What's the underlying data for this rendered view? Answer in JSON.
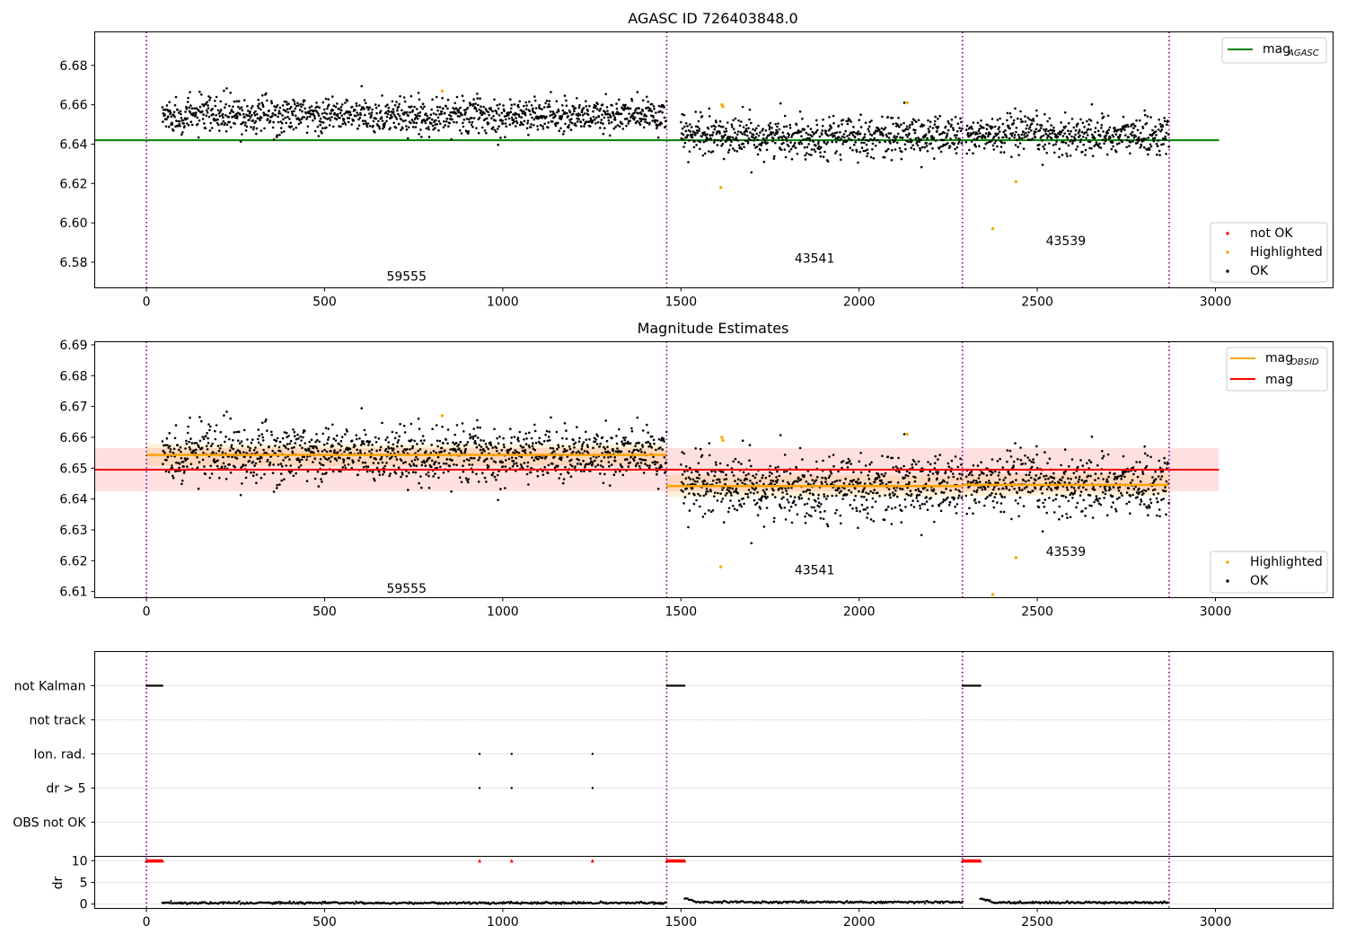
{
  "chart_data": [
    {
      "type": "scatter",
      "title": "AGASC ID 726403848.0",
      "xlim": [
        -145,
        3330
      ],
      "ylim": [
        6.567,
        6.697
      ],
      "x_ticks": [
        0,
        500,
        1000,
        1500,
        2000,
        2500,
        3000
      ],
      "y_ticks": [
        6.58,
        6.6,
        6.62,
        6.64,
        6.66,
        6.68
      ],
      "obs_boundaries": [
        0,
        1460,
        2290,
        2870
      ],
      "obsid_labels": [
        {
          "x": 730,
          "y": 6.573,
          "text": "59555"
        },
        {
          "x": 1875,
          "y": 6.582,
          "text": "43541"
        },
        {
          "x": 2580,
          "y": 6.591,
          "text": "43539"
        }
      ],
      "mag_agasc": 6.642,
      "mag_agasc_x": [
        -145,
        3010
      ],
      "segments": [
        {
          "x0": 45,
          "x1": 1460,
          "mean": 6.6545,
          "spread": 0.0045
        },
        {
          "x0": 1500,
          "x1": 2290,
          "mean": 6.644,
          "spread": 0.005
        },
        {
          "x0": 2300,
          "x1": 2870,
          "mean": 6.6445,
          "spread": 0.005
        }
      ],
      "highlighted_points": [
        {
          "x": 830,
          "y": 6.667
        },
        {
          "x": 1612,
          "y": 6.618
        },
        {
          "x": 1615,
          "y": 6.66
        },
        {
          "x": 1618,
          "y": 6.659
        },
        {
          "x": 2135,
          "y": 6.661
        },
        {
          "x": 2375,
          "y": 6.597
        },
        {
          "x": 2440,
          "y": 6.621
        }
      ],
      "legend": {
        "position": "top-right",
        "entries": [
          {
            "label": "mag",
            "sub": "AGASC",
            "color": "#008000"
          }
        ]
      },
      "legend2": {
        "position": "bottom-right",
        "entries": [
          {
            "label": "not OK",
            "color": "#ff0000"
          },
          {
            "label": "Highlighted",
            "color": "#ffa500"
          },
          {
            "label": "OK",
            "color": "#000000"
          }
        ]
      }
    },
    {
      "type": "scatter",
      "title": "Magnitude Estimates",
      "xlim": [
        -145,
        3330
      ],
      "ylim": [
        6.608,
        6.691
      ],
      "x_ticks": [
        0,
        500,
        1000,
        1500,
        2000,
        2500,
        3000
      ],
      "y_ticks": [
        6.61,
        6.62,
        6.63,
        6.64,
        6.65,
        6.66,
        6.67,
        6.68,
        6.69
      ],
      "obs_boundaries": [
        0,
        1460,
        2290,
        2870
      ],
      "obsid_labels": [
        {
          "x": 730,
          "y": 6.611,
          "text": "59555"
        },
        {
          "x": 1875,
          "y": 6.617,
          "text": "43541"
        },
        {
          "x": 2580,
          "y": 6.623,
          "text": "43539"
        }
      ],
      "mag": {
        "value": 6.6495,
        "band": [
          6.6425,
          6.6565
        ],
        "x": [
          -145,
          3010
        ]
      },
      "mag_obsid": [
        {
          "x0": 0,
          "x1": 1460,
          "value": 6.6543,
          "err": 0.0035
        },
        {
          "x0": 1460,
          "x1": 2290,
          "value": 6.6442,
          "err": 0.0035
        },
        {
          "x0": 2290,
          "x1": 2870,
          "value": 6.6446,
          "err": 0.0035
        }
      ],
      "highlighted_points": [
        {
          "x": 830,
          "y": 6.667
        },
        {
          "x": 1612,
          "y": 6.618
        },
        {
          "x": 1615,
          "y": 6.66
        },
        {
          "x": 1618,
          "y": 6.659
        },
        {
          "x": 2135,
          "y": 6.661
        },
        {
          "x": 2440,
          "y": 6.621
        },
        {
          "x": 2375,
          "y": 6.609
        }
      ],
      "legend": {
        "position": "top-right",
        "entries": [
          {
            "label": "mag",
            "sub": "OBSID",
            "color": "#ffa500"
          },
          {
            "label": "mag",
            "color": "#ff0000"
          }
        ]
      },
      "legend2": {
        "position": "bottom-right",
        "entries": [
          {
            "label": "Highlighted",
            "color": "#ffa500"
          },
          {
            "label": "OK",
            "color": "#000000"
          }
        ]
      }
    },
    {
      "type": "scatter",
      "title": "",
      "xlim": [
        -145,
        3330
      ],
      "x_ticks": [
        0,
        500,
        1000,
        1500,
        2000,
        2500,
        3000
      ],
      "flag_rows": [
        "not Kalman",
        "not track",
        "Ion. rad.",
        "dr > 5",
        "OBS not OK"
      ],
      "flags": {
        "not Kalman": [
          [
            0,
            45
          ],
          [
            1460,
            1510
          ],
          [
            2290,
            2340
          ]
        ],
        "not track": [],
        "Ion. rad.": [
          935,
          1025,
          1252
        ],
        "dr > 5": [
          935,
          1025,
          1252
        ],
        "OBS not OK": []
      },
      "dr": {
        "ylabel": "dr",
        "ylim": [
          -1,
          11
        ],
        "y_ticks": [
          0,
          5,
          10
        ],
        "clip_value": 10,
        "clipped_ranges": [
          [
            0,
            45
          ],
          [
            1460,
            1510
          ],
          [
            2290,
            2340
          ]
        ],
        "clipped_points": [
          935,
          1025,
          1252
        ],
        "segments": [
          {
            "x0": 45,
            "x1": 1460,
            "level": 0.25
          },
          {
            "x0": 1510,
            "x1": 2290,
            "level": 0.45
          },
          {
            "x0": 2340,
            "x1": 2870,
            "level": 0.35
          }
        ]
      }
    }
  ]
}
